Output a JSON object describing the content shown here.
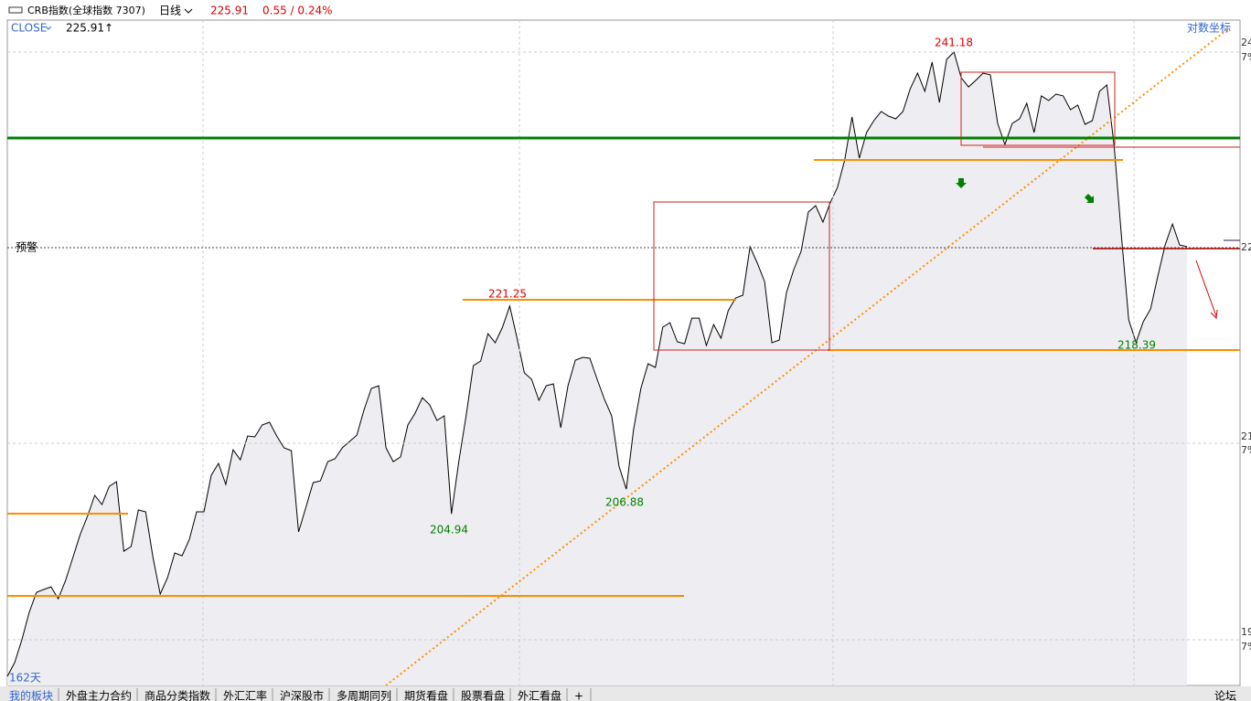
{
  "header": {
    "symbol": "CRB指数(全球指数 7307)",
    "period": "日线",
    "price": "225.91",
    "change": "0.55 / 0.24%"
  },
  "chart_data": {
    "type": "line",
    "title": "CRB指数(全球指数 7307)",
    "series_label": "CLOSE",
    "close_label": "225.91↑",
    "scale_button": "对数坐标",
    "alert_label": "预警",
    "days_label": "162天",
    "color": "#000000",
    "fill": "#eeeef2",
    "ylim": [
      191.47,
      243.69
    ],
    "axis_labels": [
      "24",
      "7%",
      "22",
      "21",
      "7%",
      "19",
      "7%"
    ],
    "annotations": [
      "241.18",
      "221.25",
      "204.94",
      "206.88",
      "218.39"
    ],
    "values": [
      192.18,
      193.26,
      195.05,
      197.2,
      198.78,
      199.0,
      199.21,
      198.28,
      199.71,
      201.51,
      203.3,
      204.74,
      206.39,
      205.67,
      207.1,
      207.46,
      202.01,
      202.37,
      205.24,
      205.1,
      201.51,
      198.64,
      199.93,
      201.87,
      201.65,
      202.94,
      205.1,
      205.1,
      207.96,
      208.9,
      207.25,
      209.97,
      209.18,
      211.05,
      210.98,
      211.91,
      212.13,
      211.05,
      210.12,
      209.9,
      203.52,
      205.45,
      207.39,
      207.53,
      209.04,
      209.26,
      210.12,
      210.62,
      211.12,
      213.13,
      214.78,
      214.99,
      210.12,
      209.04,
      209.4,
      211.91,
      212.84,
      214.06,
      213.49,
      212.27,
      212.63,
      204.94,
      209.04,
      212.63,
      216.57,
      216.93,
      219.08,
      218.37,
      219.59,
      221.25,
      218.73,
      216.0,
      215.5,
      213.85,
      214.99,
      215.14,
      211.69,
      214.99,
      217.0,
      217.22,
      217.15,
      215.5,
      213.92,
      212.63,
      208.68,
      206.88,
      211.55,
      214.78,
      216.72,
      216.43,
      219.59,
      219.94,
      218.44,
      218.29,
      220.3,
      220.3,
      218.15,
      219.8,
      218.73,
      220.88,
      221.88,
      222.1,
      225.9,
      224.61,
      223.17,
      218.37,
      218.58,
      222.31,
      224.11,
      225.54,
      228.63,
      229.13,
      227.84,
      229.34,
      230.56,
      232.71,
      236.09,
      232.86,
      234.87,
      235.8,
      236.52,
      236.16,
      235.94,
      236.52,
      238.31,
      239.53,
      238.1,
      240.39,
      237.23,
      240.61,
      241.18,
      239.17,
      238.45,
      238.96,
      239.53,
      239.39,
      235.58,
      233.93,
      235.58,
      235.94,
      237.16,
      234.87,
      237.74,
      237.38,
      237.88,
      237.74,
      236.66,
      237.02,
      235.51,
      235.8,
      238.1,
      238.6,
      233.79,
      226.76,
      220.16,
      218.39,
      220.02,
      221.02,
      223.6,
      226.04,
      227.69,
      226.04,
      225.91
    ]
  },
  "tabs": [
    "我的板块",
    "外盘主力合约",
    "商品分类指数",
    "外汇汇率",
    "沪深股市",
    "多周期同列",
    "期货看盘",
    "股票看盘",
    "外汇看盘",
    "+",
    "论坛"
  ]
}
